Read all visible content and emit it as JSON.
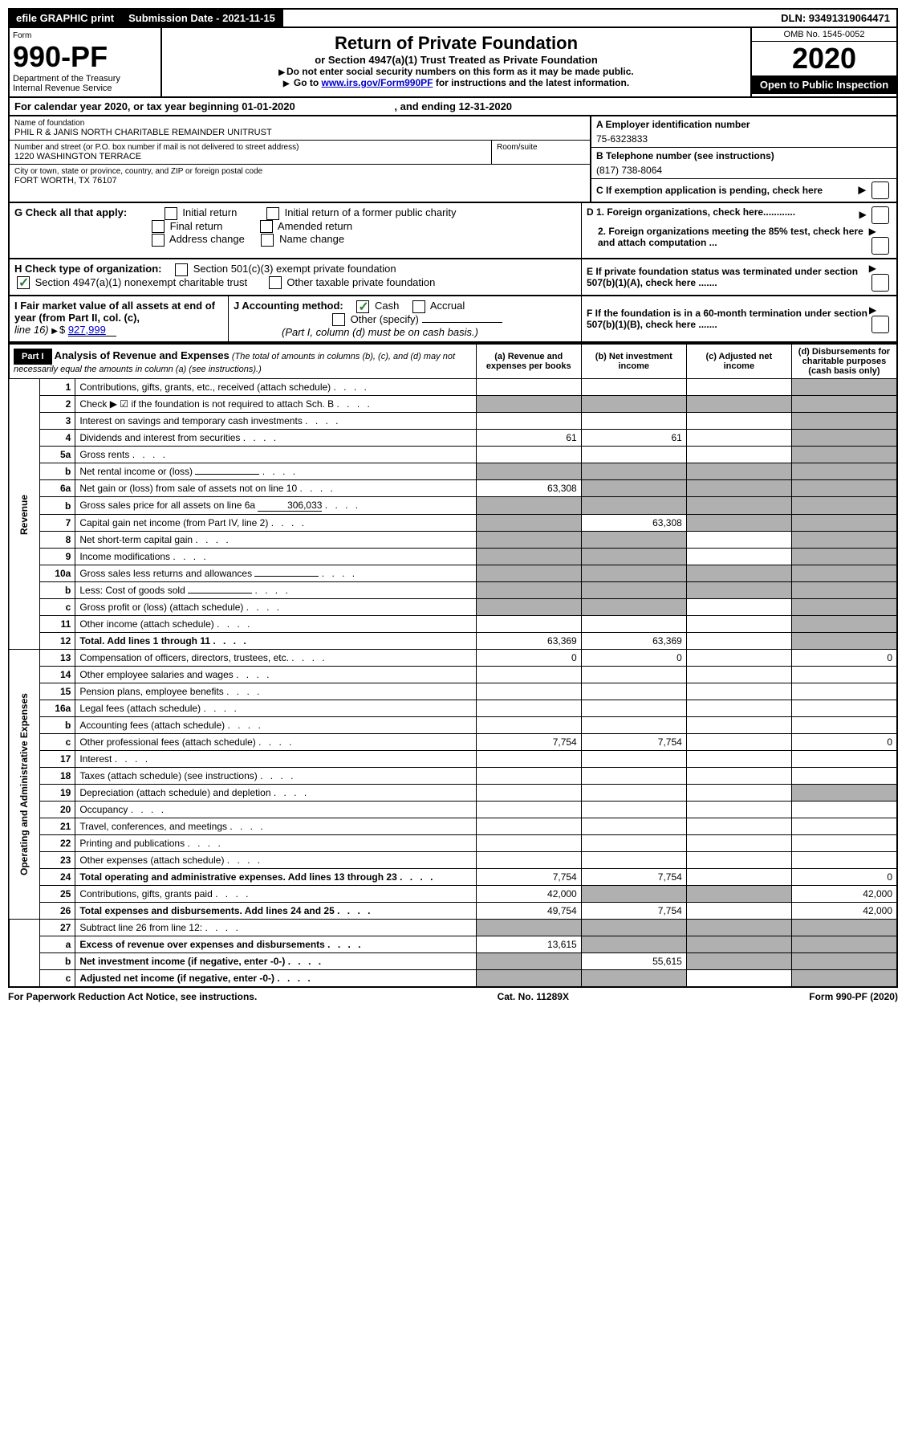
{
  "top": {
    "efile": "efile GRAPHIC print",
    "submission": "Submission Date - 2021-11-15",
    "dln": "DLN: 93491319064471"
  },
  "header": {
    "form_label": "Form",
    "form_num": "990-PF",
    "dept": "Department of the Treasury",
    "irs": "Internal Revenue Service",
    "title": "Return of Private Foundation",
    "subtitle": "or Section 4947(a)(1) Trust Treated as Private Foundation",
    "inst1": "Do not enter social security numbers on this form as it may be made public.",
    "inst2_pre": "Go to ",
    "inst2_link": "www.irs.gov/Form990PF",
    "inst2_post": " for instructions and the latest information.",
    "omb": "OMB No. 1545-0052",
    "year": "2020",
    "open": "Open to Public Inspection"
  },
  "cal": {
    "text_pre": "For calendar year 2020, or tax year beginning ",
    "begin": "01-01-2020",
    "text_mid": ", and ending ",
    "end": "12-31-2020"
  },
  "info": {
    "name_label": "Name of foundation",
    "name": "PHIL R & JANIS NORTH CHARITABLE REMAINDER UNITRUST",
    "addr_label": "Number and street (or P.O. box number if mail is not delivered to street address)",
    "addr": "1220 WASHINGTON TERRACE",
    "room_label": "Room/suite",
    "city_label": "City or town, state or province, country, and ZIP or foreign postal code",
    "city": "FORT WORTH, TX  76107",
    "a_label": "A Employer identification number",
    "ein": "75-6323833",
    "b_label": "B Telephone number (see instructions)",
    "phone": "(817) 738-8064",
    "c_label": "C If exemption application is pending, check here"
  },
  "g": {
    "label": "G Check all that apply:",
    "opts": [
      "Initial return",
      "Initial return of a former public charity",
      "Final return",
      "Amended return",
      "Address change",
      "Name change"
    ]
  },
  "d": {
    "d1": "D 1. Foreign organizations, check here............",
    "d2": "2. Foreign organizations meeting the 85% test, check here and attach computation ..."
  },
  "h": {
    "label": "H Check type of organization:",
    "opt1": "Section 501(c)(3) exempt private foundation",
    "opt2": "Section 4947(a)(1) nonexempt charitable trust",
    "opt3": "Other taxable private foundation"
  },
  "e": {
    "label": "E  If private foundation status was terminated under section 507(b)(1)(A), check here ......."
  },
  "i": {
    "label": "I Fair market value of all assets at end of year (from Part II, col. (c),",
    "line": "line 16)",
    "val": "927,999"
  },
  "j": {
    "label": "J Accounting method:",
    "opt1": "Cash",
    "opt2": "Accrual",
    "opt3": "Other (specify)",
    "note": "(Part I, column (d) must be on cash basis.)"
  },
  "f": {
    "label": "F  If the foundation is in a 60-month termination under section 507(b)(1)(B), check here ......."
  },
  "part1": {
    "label": "Part I",
    "title": "Analysis of Revenue and Expenses",
    "subtitle": "(The total of amounts in columns (b), (c), and (d) may not necessarily equal the amounts in column (a) (see instructions).)",
    "col_a": "(a) Revenue and expenses per books",
    "col_b": "(b) Net investment income",
    "col_c": "(c) Adjusted net income",
    "col_d": "(d) Disbursements for charitable purposes (cash basis only)"
  },
  "sections": {
    "revenue": "Revenue",
    "expenses": "Operating and Administrative Expenses"
  },
  "rows": [
    {
      "n": "1",
      "desc": "Contributions, gifts, grants, etc., received (attach schedule)",
      "a": "",
      "b": "",
      "c": "",
      "d": "grey"
    },
    {
      "n": "2",
      "desc": "Check ▶ ☑ if the foundation is not required to attach Sch. B",
      "type": "check",
      "a": "grey",
      "b": "grey",
      "c": "grey",
      "d": "grey"
    },
    {
      "n": "3",
      "desc": "Interest on savings and temporary cash investments",
      "a": "",
      "b": "",
      "c": "",
      "d": "grey"
    },
    {
      "n": "4",
      "desc": "Dividends and interest from securities",
      "a": "61",
      "b": "61",
      "c": "",
      "d": "grey"
    },
    {
      "n": "5a",
      "desc": "Gross rents",
      "a": "",
      "b": "",
      "c": "",
      "d": "grey"
    },
    {
      "n": "b",
      "desc": "Net rental income or (loss)",
      "a": "grey",
      "b": "grey",
      "c": "grey",
      "d": "grey",
      "inline": ""
    },
    {
      "n": "6a",
      "desc": "Net gain or (loss) from sale of assets not on line 10",
      "a": "63,308",
      "b": "grey",
      "c": "grey",
      "d": "grey"
    },
    {
      "n": "b",
      "desc": "Gross sales price for all assets on line 6a",
      "a": "grey",
      "b": "grey",
      "c": "grey",
      "d": "grey",
      "inline": "306,033"
    },
    {
      "n": "7",
      "desc": "Capital gain net income (from Part IV, line 2)",
      "a": "grey",
      "b": "63,308",
      "c": "grey",
      "d": "grey"
    },
    {
      "n": "8",
      "desc": "Net short-term capital gain",
      "a": "grey",
      "b": "grey",
      "c": "",
      "d": "grey"
    },
    {
      "n": "9",
      "desc": "Income modifications",
      "a": "grey",
      "b": "grey",
      "c": "",
      "d": "grey"
    },
    {
      "n": "10a",
      "desc": "Gross sales less returns and allowances",
      "a": "grey",
      "b": "grey",
      "c": "grey",
      "d": "grey",
      "inline": ""
    },
    {
      "n": "b",
      "desc": "Less: Cost of goods sold",
      "a": "grey",
      "b": "grey",
      "c": "grey",
      "d": "grey",
      "inline": ""
    },
    {
      "n": "c",
      "desc": "Gross profit or (loss) (attach schedule)",
      "a": "grey",
      "b": "grey",
      "c": "",
      "d": "grey"
    },
    {
      "n": "11",
      "desc": "Other income (attach schedule)",
      "a": "",
      "b": "",
      "c": "",
      "d": "grey"
    },
    {
      "n": "12",
      "desc": "Total. Add lines 1 through 11",
      "bold": true,
      "a": "63,369",
      "b": "63,369",
      "c": "",
      "d": "grey"
    }
  ],
  "exp_rows": [
    {
      "n": "13",
      "desc": "Compensation of officers, directors, trustees, etc.",
      "a": "0",
      "b": "0",
      "c": "",
      "d": "0"
    },
    {
      "n": "14",
      "desc": "Other employee salaries and wages",
      "a": "",
      "b": "",
      "c": "",
      "d": ""
    },
    {
      "n": "15",
      "desc": "Pension plans, employee benefits",
      "a": "",
      "b": "",
      "c": "",
      "d": ""
    },
    {
      "n": "16a",
      "desc": "Legal fees (attach schedule)",
      "a": "",
      "b": "",
      "c": "",
      "d": ""
    },
    {
      "n": "b",
      "desc": "Accounting fees (attach schedule)",
      "a": "",
      "b": "",
      "c": "",
      "d": ""
    },
    {
      "n": "c",
      "desc": "Other professional fees (attach schedule)",
      "a": "7,754",
      "b": "7,754",
      "c": "",
      "d": "0"
    },
    {
      "n": "17",
      "desc": "Interest",
      "a": "",
      "b": "",
      "c": "",
      "d": ""
    },
    {
      "n": "18",
      "desc": "Taxes (attach schedule) (see instructions)",
      "a": "",
      "b": "",
      "c": "",
      "d": ""
    },
    {
      "n": "19",
      "desc": "Depreciation (attach schedule) and depletion",
      "a": "",
      "b": "",
      "c": "",
      "d": "grey"
    },
    {
      "n": "20",
      "desc": "Occupancy",
      "a": "",
      "b": "",
      "c": "",
      "d": ""
    },
    {
      "n": "21",
      "desc": "Travel, conferences, and meetings",
      "a": "",
      "b": "",
      "c": "",
      "d": ""
    },
    {
      "n": "22",
      "desc": "Printing and publications",
      "a": "",
      "b": "",
      "c": "",
      "d": ""
    },
    {
      "n": "23",
      "desc": "Other expenses (attach schedule)",
      "a": "",
      "b": "",
      "c": "",
      "d": ""
    },
    {
      "n": "24",
      "desc": "Total operating and administrative expenses. Add lines 13 through 23",
      "bold": true,
      "a": "7,754",
      "b": "7,754",
      "c": "",
      "d": "0"
    },
    {
      "n": "25",
      "desc": "Contributions, gifts, grants paid",
      "a": "42,000",
      "b": "grey",
      "c": "grey",
      "d": "42,000"
    },
    {
      "n": "26",
      "desc": "Total expenses and disbursements. Add lines 24 and 25",
      "bold": true,
      "a": "49,754",
      "b": "7,754",
      "c": "",
      "d": "42,000"
    }
  ],
  "bottom_rows": [
    {
      "n": "27",
      "desc": "Subtract line 26 from line 12:",
      "a": "grey",
      "b": "grey",
      "c": "grey",
      "d": "grey"
    },
    {
      "n": "a",
      "desc": "Excess of revenue over expenses and disbursements",
      "bold": true,
      "a": "13,615",
      "b": "grey",
      "c": "grey",
      "d": "grey"
    },
    {
      "n": "b",
      "desc": "Net investment income (if negative, enter -0-)",
      "bold": true,
      "a": "grey",
      "b": "55,615",
      "c": "grey",
      "d": "grey"
    },
    {
      "n": "c",
      "desc": "Adjusted net income (if negative, enter -0-)",
      "bold": true,
      "a": "grey",
      "b": "grey",
      "c": "",
      "d": "grey"
    }
  ],
  "footer": {
    "left": "For Paperwork Reduction Act Notice, see instructions.",
    "mid": "Cat. No. 11289X",
    "right": "Form 990-PF (2020)"
  }
}
